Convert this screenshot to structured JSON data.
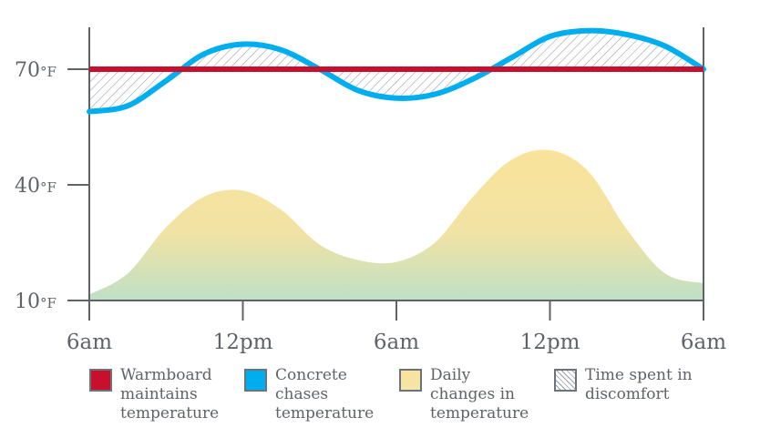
{
  "chart_data": {
    "type": "line",
    "x_ticks": [
      "6am",
      "12pm",
      "6am",
      "12pm",
      "6am"
    ],
    "y_ticks": [
      {
        "value": 10,
        "num": "10",
        "unit": "°F"
      },
      {
        "value": 40,
        "num": "40",
        "unit": "°F"
      },
      {
        "value": 70,
        "num": "70",
        "unit": "°F"
      }
    ],
    "ylim": [
      10,
      80
    ],
    "x_hours": [
      0,
      48
    ],
    "series": [
      {
        "name": "Warmboard maintains temperature",
        "kind": "line",
        "color": "#c8102e",
        "x": [
          0,
          48
        ],
        "y": [
          70,
          70
        ]
      },
      {
        "name": "Concrete chases temperature",
        "kind": "line",
        "color": "#00aeef",
        "x": [
          0,
          3,
          6,
          9,
          12,
          15,
          18,
          21,
          24,
          27,
          30,
          33,
          36,
          39,
          42,
          45,
          48
        ],
        "y": [
          59,
          60.5,
          67,
          74,
          76.5,
          75,
          70,
          64.5,
          62.5,
          63.5,
          67.5,
          73,
          78.5,
          80,
          79,
          76,
          70
        ]
      },
      {
        "name": "Daily changes in temperature",
        "kind": "area",
        "color_top": "#fae39b",
        "color_bottom": "#bfe0c6",
        "x": [
          0,
          3,
          6,
          9,
          12,
          15,
          18,
          21,
          24,
          27,
          30,
          33,
          36,
          39,
          42,
          45,
          48
        ],
        "y": [
          11.5,
          17,
          29,
          37,
          38.5,
          33.5,
          24.5,
          20.5,
          20,
          25,
          37,
          46.5,
          49,
          43.5,
          28.5,
          17,
          14.5
        ]
      }
    ],
    "hatch_label": "Time spent in discomfort",
    "axis_color": "#5f6368"
  },
  "legend": [
    {
      "label": "Warmboard\nmaintains\ntemperature",
      "swatch": "red"
    },
    {
      "label": "Concrete\nchases\ntemperature",
      "swatch": "blue"
    },
    {
      "label": "Daily\nchanges in\ntemperature",
      "swatch": "yellow"
    },
    {
      "label": "Time spent in\ndiscomfort",
      "swatch": "hatch"
    }
  ]
}
